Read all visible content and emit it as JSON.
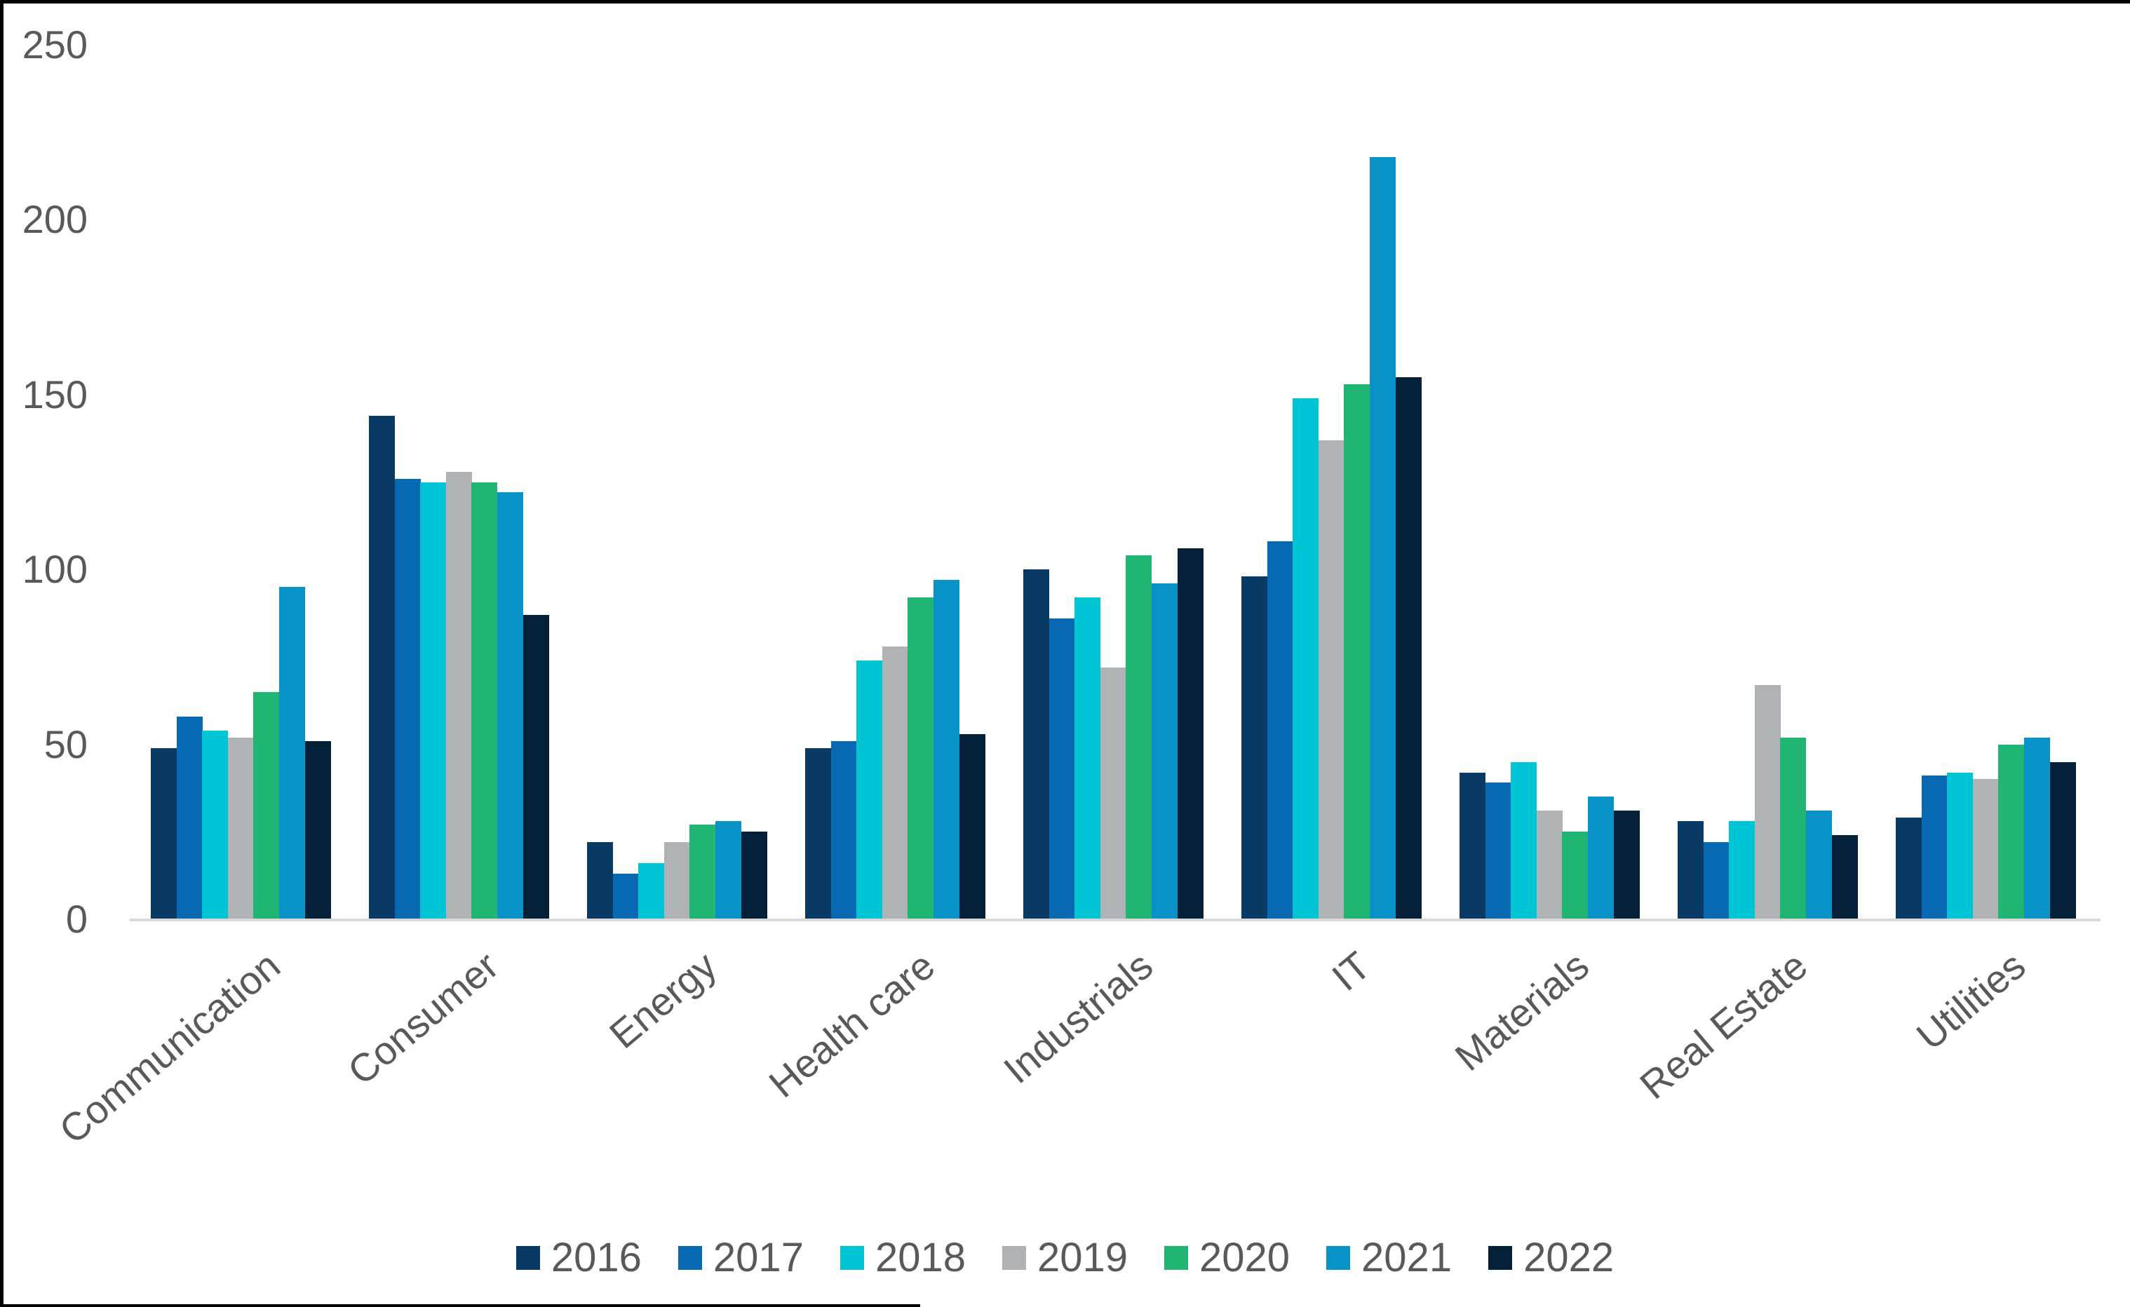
{
  "frame": {
    "border_color": "#000000",
    "background_color": "#ffffff"
  },
  "chart_data": {
    "type": "bar",
    "title": "",
    "xlabel": "",
    "ylabel": "",
    "categories": [
      "Communication",
      "Consumer",
      "Energy",
      "Health care",
      "Industrials",
      "IT",
      "Materials",
      "Real Estate",
      "Utilities"
    ],
    "series": [
      {
        "name": "2016",
        "color": "#093a63",
        "values": [
          49,
          144,
          22,
          49,
          100,
          98,
          42,
          28,
          29
        ]
      },
      {
        "name": "2017",
        "color": "#0669b2",
        "values": [
          58,
          126,
          13,
          51,
          86,
          108,
          39,
          22,
          41
        ]
      },
      {
        "name": "2018",
        "color": "#00c5d4",
        "values": [
          54,
          125,
          16,
          74,
          92,
          149,
          45,
          28,
          42
        ]
      },
      {
        "name": "2019",
        "color": "#b0b3b5",
        "values": [
          52,
          128,
          22,
          78,
          72,
          137,
          31,
          67,
          40
        ]
      },
      {
        "name": "2020",
        "color": "#21b573",
        "values": [
          65,
          125,
          27,
          92,
          104,
          153,
          25,
          52,
          50
        ]
      },
      {
        "name": "2021",
        "color": "#0892c8",
        "values": [
          95,
          122,
          28,
          97,
          96,
          218,
          35,
          31,
          52
        ]
      },
      {
        "name": "2022",
        "color": "#042038",
        "values": [
          51,
          87,
          25,
          53,
          106,
          155,
          31,
          24,
          45
        ]
      }
    ],
    "ylim": [
      0,
      250
    ],
    "yticks": [
      "0",
      "50",
      "100",
      "150",
      "200",
      "250"
    ],
    "ytick_values": [
      0,
      50,
      100,
      150,
      200,
      250
    ],
    "grid": false,
    "legend_position": "bottom",
    "axis_line_color": "#d9d9d9",
    "text_color": "#595959"
  }
}
